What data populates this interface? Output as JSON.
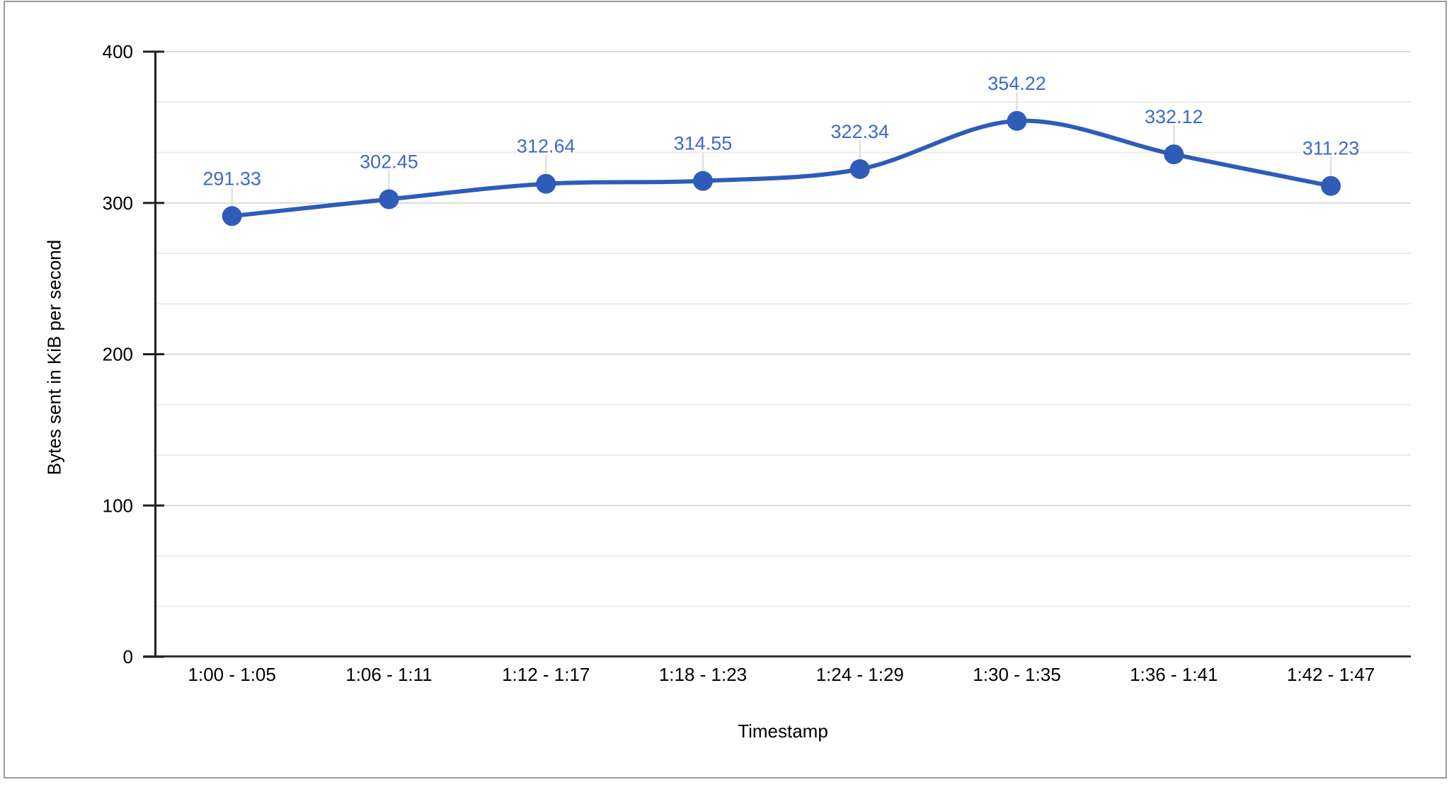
{
  "chart_data": {
    "type": "line",
    "smooth": true,
    "title": "",
    "xlabel": "Timestamp",
    "ylabel": "Bytes sent in KiB per second",
    "categories": [
      "1:00 - 1:05",
      "1:06 - 1:11",
      "1:12 - 1:17",
      "1:18 - 1:23",
      "1:24 - 1:29",
      "1:30 - 1:35",
      "1:36 - 1:41",
      "1:42 - 1:47"
    ],
    "series": [
      {
        "name": "Bytes sent in KiB per second",
        "values": [
          291.33,
          302.45,
          312.64,
          314.55,
          322.34,
          354.22,
          332.12,
          311.23
        ]
      }
    ],
    "value_labels": [
      "291.33",
      "302.45",
      "312.64",
      "314.55",
      "322.34",
      "354.22",
      "332.12",
      "311.23"
    ],
    "ylim": [
      0,
      400
    ],
    "y_ticks": [
      0,
      100,
      200,
      300,
      400
    ],
    "y_tick_labels": [
      "0",
      "100",
      "200",
      "300",
      "400"
    ],
    "minor_gridlines_per_major": 2,
    "grid": true,
    "legend": "none",
    "point_markers": true,
    "annotations_shown": true,
    "colors": {
      "series": "#2E5CB8",
      "annotation_text": "#3E6AC8",
      "axis_text": "#000000",
      "axis_line": "#212121",
      "baseline": "#333333",
      "major_gridline": "#DADADA",
      "minor_gridline": "#ECECEC",
      "annotation_stem": "#E0E0E0",
      "frame_border": "#9A9A9A",
      "background": "#FFFFFF"
    }
  }
}
